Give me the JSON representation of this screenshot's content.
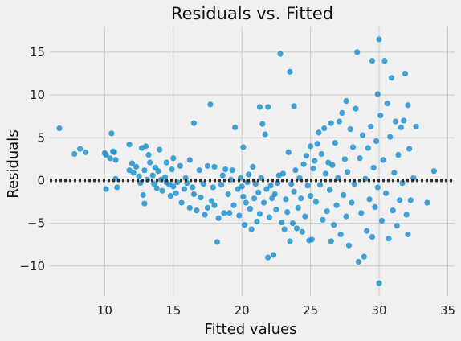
{
  "chart_data": {
    "type": "scatter",
    "title": "Residuals vs. Fitted",
    "xlabel": "Fitted values",
    "ylabel": "Residuals",
    "xlim": [
      6.0,
      35.5
    ],
    "ylim": [
      -13.5,
      18.0
    ],
    "xticks": [
      10,
      15,
      20,
      25,
      30,
      35
    ],
    "xtick_labels": [
      "10",
      "15",
      "20",
      "25",
      "30",
      "35"
    ],
    "yticks": [
      -10,
      -5,
      0,
      5,
      10,
      15
    ],
    "ytick_labels": [
      "−10",
      "−5",
      "0",
      "5",
      "10",
      "15"
    ],
    "grid": true,
    "reference_line": {
      "y": 0,
      "style": "dotted",
      "color": "#303030"
    },
    "point_color": "#1a8fd0",
    "background_color": "#f0f0f0",
    "grid_color": "#cbcbcb",
    "points": [
      [
        6.7,
        6.1
      ],
      [
        7.8,
        3.1
      ],
      [
        8.2,
        3.7
      ],
      [
        8.6,
        3.3
      ],
      [
        10.0,
        3.2
      ],
      [
        10.1,
        3.0
      ],
      [
        10.1,
        -1.0
      ],
      [
        10.4,
        2.6
      ],
      [
        10.5,
        5.5
      ],
      [
        10.6,
        3.4
      ],
      [
        10.7,
        3.3
      ],
      [
        10.8,
        2.4
      ],
      [
        10.8,
        0.2
      ],
      [
        10.9,
        -0.8
      ],
      [
        11.8,
        4.2
      ],
      [
        11.8,
        1.2
      ],
      [
        12.0,
        2.0
      ],
      [
        12.1,
        0.9
      ],
      [
        12.3,
        1.6
      ],
      [
        12.5,
        0.5
      ],
      [
        12.6,
        -0.3
      ],
      [
        12.7,
        3.8
      ],
      [
        12.8,
        -1.7
      ],
      [
        12.9,
        -2.7
      ],
      [
        12.9,
        1.2
      ],
      [
        13.0,
        4.0
      ],
      [
        13.1,
        0.1
      ],
      [
        13.2,
        3.0
      ],
      [
        13.3,
        2.1
      ],
      [
        13.5,
        0.6
      ],
      [
        13.6,
        -0.4
      ],
      [
        13.7,
        1.5
      ],
      [
        13.8,
        -0.9
      ],
      [
        13.9,
        1.1
      ],
      [
        14.0,
        3.6
      ],
      [
        14.1,
        0.1
      ],
      [
        14.2,
        -1.2
      ],
      [
        14.4,
        0.4
      ],
      [
        14.5,
        2.1
      ],
      [
        14.5,
        -0.2
      ],
      [
        14.7,
        -0.5
      ],
      [
        14.8,
        -1.8
      ],
      [
        14.9,
        1.3
      ],
      [
        15.0,
        -0.7
      ],
      [
        15.0,
        2.6
      ],
      [
        15.2,
        -1.5
      ],
      [
        15.3,
        -0.2
      ],
      [
        15.5,
        1.7
      ],
      [
        15.6,
        -2.6
      ],
      [
        15.8,
        -1.0
      ],
      [
        15.9,
        0.3
      ],
      [
        16.0,
        -0.3
      ],
      [
        16.2,
        2.4
      ],
      [
        16.2,
        -3.2
      ],
      [
        16.4,
        -0.8
      ],
      [
        16.5,
        -1.6
      ],
      [
        16.5,
        6.7
      ],
      [
        16.7,
        -3.5
      ],
      [
        16.9,
        1.2
      ],
      [
        17.0,
        -2.0
      ],
      [
        17.2,
        -0.4
      ],
      [
        17.3,
        -4.0
      ],
      [
        17.5,
        -3.2
      ],
      [
        17.5,
        1.7
      ],
      [
        17.7,
        8.9
      ],
      [
        17.8,
        -2.4
      ],
      [
        17.9,
        -0.8
      ],
      [
        18.0,
        -2.9
      ],
      [
        18.0,
        1.6
      ],
      [
        18.2,
        -7.2
      ],
      [
        18.3,
        -4.4
      ],
      [
        18.5,
        -0.5
      ],
      [
        18.6,
        0.6
      ],
      [
        18.7,
        -3.8
      ],
      [
        18.8,
        1.3
      ],
      [
        19.0,
        -1.6
      ],
      [
        19.1,
        -3.8
      ],
      [
        19.2,
        0.1
      ],
      [
        19.3,
        1.2
      ],
      [
        19.4,
        -2.9
      ],
      [
        19.5,
        6.2
      ],
      [
        19.7,
        -1.0
      ],
      [
        19.8,
        -4.1
      ],
      [
        19.9,
        0.3
      ],
      [
        20.0,
        -0.7
      ],
      [
        20.1,
        -1.9
      ],
      [
        20.1,
        3.9
      ],
      [
        20.2,
        -5.2
      ],
      [
        20.3,
        -2.6
      ],
      [
        20.4,
        -0.2
      ],
      [
        20.5,
        0.7
      ],
      [
        20.6,
        -3.3
      ],
      [
        20.7,
        -5.7
      ],
      [
        20.8,
        1.6
      ],
      [
        20.9,
        -2.1
      ],
      [
        21.0,
        -0.4
      ],
      [
        21.1,
        -4.8
      ],
      [
        21.2,
        -1.4
      ],
      [
        21.3,
        8.6
      ],
      [
        21.3,
        -3.9
      ],
      [
        21.4,
        0.3
      ],
      [
        21.5,
        6.6
      ],
      [
        21.6,
        -2.6
      ],
      [
        21.7,
        5.4
      ],
      [
        21.8,
        -1.0
      ],
      [
        21.9,
        8.6
      ],
      [
        21.9,
        -9.0
      ],
      [
        22.0,
        -4.3
      ],
      [
        22.1,
        -0.6
      ],
      [
        22.2,
        -2.1
      ],
      [
        22.3,
        -8.7
      ],
      [
        22.4,
        -1.6
      ],
      [
        22.5,
        -3.4
      ],
      [
        22.6,
        -0.3
      ],
      [
        22.7,
        0.6
      ],
      [
        22.8,
        14.8
      ],
      [
        22.9,
        -4.9
      ],
      [
        23.0,
        0.8
      ],
      [
        23.1,
        -5.7
      ],
      [
        23.2,
        -2.2
      ],
      [
        23.3,
        -3.7
      ],
      [
        23.4,
        3.3
      ],
      [
        23.5,
        12.7
      ],
      [
        23.5,
        -7.1
      ],
      [
        23.6,
        -0.4
      ],
      [
        23.7,
        -5.0
      ],
      [
        23.8,
        8.7
      ],
      [
        23.8,
        -1.3
      ],
      [
        23.9,
        1.2
      ],
      [
        24.0,
        -5.6
      ],
      [
        24.1,
        -3.2
      ],
      [
        24.2,
        0.3
      ],
      [
        24.3,
        -2.1
      ],
      [
        24.4,
        -6.0
      ],
      [
        24.5,
        1.9
      ],
      [
        24.6,
        -4.2
      ],
      [
        24.7,
        2.9
      ],
      [
        24.8,
        -0.6
      ],
      [
        24.9,
        -7.0
      ],
      [
        25.0,
        4.0
      ],
      [
        25.0,
        -1.8
      ],
      [
        25.1,
        -6.9
      ],
      [
        25.2,
        1.4
      ],
      [
        25.3,
        2.3
      ],
      [
        25.4,
        -2.5
      ],
      [
        25.5,
        4.3
      ],
      [
        25.6,
        5.6
      ],
      [
        25.7,
        -0.5
      ],
      [
        25.8,
        3.1
      ],
      [
        25.9,
        -4.6
      ],
      [
        26.0,
        6.1
      ],
      [
        26.1,
        0.8
      ],
      [
        26.2,
        -3.6
      ],
      [
        26.3,
        2.1
      ],
      [
        26.4,
        -1.1
      ],
      [
        26.5,
        6.7
      ],
      [
        26.5,
        -7.1
      ],
      [
        26.6,
        1.8
      ],
      [
        26.7,
        -5.2
      ],
      [
        26.8,
        4.4
      ],
      [
        26.9,
        -2.9
      ],
      [
        27.0,
        0.3
      ],
      [
        27.1,
        6.9
      ],
      [
        27.2,
        -6.3
      ],
      [
        27.3,
        7.9
      ],
      [
        27.4,
        -1.7
      ],
      [
        27.5,
        2.5
      ],
      [
        27.6,
        9.3
      ],
      [
        27.6,
        -4.2
      ],
      [
        27.7,
        1.0
      ],
      [
        27.8,
        -7.6
      ],
      [
        27.9,
        6.0
      ],
      [
        28.0,
        -2.6
      ],
      [
        28.1,
        3.9
      ],
      [
        28.2,
        -0.4
      ],
      [
        28.3,
        8.4
      ],
      [
        28.4,
        15.0
      ],
      [
        28.5,
        -9.5
      ],
      [
        28.6,
        2.6
      ],
      [
        28.7,
        -3.8
      ],
      [
        28.8,
        5.3
      ],
      [
        28.9,
        -8.9
      ],
      [
        29.0,
        0.2
      ],
      [
        29.1,
        -5.9
      ],
      [
        29.2,
        3.8
      ],
      [
        29.3,
        -2.2
      ],
      [
        29.4,
        6.3
      ],
      [
        29.5,
        14.0
      ],
      [
        29.5,
        -6.6
      ],
      [
        29.6,
        1.5
      ],
      [
        29.7,
        -3.1
      ],
      [
        29.8,
        4.6
      ],
      [
        29.9,
        10.1
      ],
      [
        29.9,
        -0.8
      ],
      [
        30.0,
        16.5
      ],
      [
        30.0,
        -12.0
      ],
      [
        30.1,
        7.6
      ],
      [
        30.2,
        -4.7
      ],
      [
        30.3,
        2.4
      ],
      [
        30.4,
        14.0
      ],
      [
        30.5,
        -1.5
      ],
      [
        30.6,
        9.0
      ],
      [
        30.7,
        -6.8
      ],
      [
        30.8,
        5.1
      ],
      [
        30.9,
        12.0
      ],
      [
        31.0,
        -3.5
      ],
      [
        31.1,
        0.9
      ],
      [
        31.2,
        6.9
      ],
      [
        31.3,
        -5.3
      ],
      [
        31.4,
        3.0
      ],
      [
        31.5,
        -2.3
      ],
      [
        31.6,
        6.2
      ],
      [
        31.7,
        -0.3
      ],
      [
        31.8,
        7.0
      ],
      [
        31.9,
        12.5
      ],
      [
        32.0,
        -4.0
      ],
      [
        32.1,
        8.8
      ],
      [
        32.1,
        -6.3
      ],
      [
        32.2,
        3.7
      ],
      [
        32.3,
        -2.3
      ],
      [
        32.5,
        0.3
      ],
      [
        32.7,
        6.3
      ],
      [
        33.5,
        -2.6
      ],
      [
        34.0,
        1.1
      ]
    ]
  }
}
